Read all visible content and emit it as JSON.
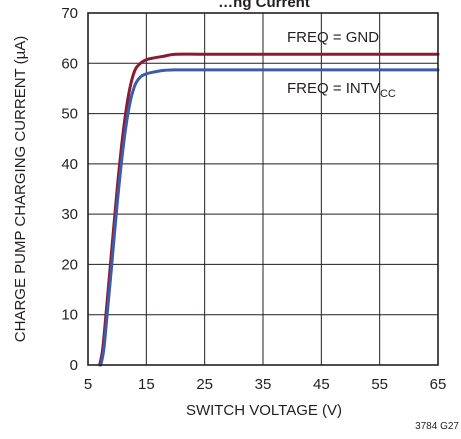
{
  "chart_data": {
    "type": "line",
    "title": "…ng Current",
    "xlabel": "SWITCH VOLTAGE (V)",
    "ylabel": "CHARGE PUMP CHARGING CURRENT (µA)",
    "xlim": [
      5,
      65
    ],
    "ylim": [
      0,
      70
    ],
    "x_ticks": [
      5,
      15,
      25,
      35,
      45,
      55,
      65
    ],
    "y_ticks": [
      0,
      10,
      20,
      30,
      40,
      50,
      60,
      70
    ],
    "grid": true,
    "series": [
      {
        "name": "FREQ = GND",
        "color": "#8b1a33",
        "x": [
          7.0,
          7.5,
          8.0,
          9.0,
          10.0,
          11.0,
          12.0,
          13.0,
          14.0,
          15.0,
          16.0,
          18.0,
          20.0,
          25.0,
          35.0,
          45.0,
          55.0,
          65.0
        ],
        "y": [
          0,
          3,
          9,
          22,
          35,
          46,
          54,
          58.5,
          60,
          60.7,
          61.0,
          61.4,
          61.8,
          61.8,
          61.8,
          61.8,
          61.8,
          61.8
        ]
      },
      {
        "name": "FREQ = INTVCC",
        "color": "#3c5ba9",
        "x": [
          7.2,
          7.7,
          8.2,
          9.0,
          10.0,
          11.0,
          12.0,
          13.0,
          14.0,
          15.0,
          16.0,
          18.0,
          20.0,
          25.0,
          35.0,
          45.0,
          55.0,
          65.0
        ],
        "y": [
          0,
          3,
          9,
          19,
          32,
          43,
          51,
          55.5,
          57.3,
          57.9,
          58.2,
          58.6,
          58.7,
          58.7,
          58.7,
          58.7,
          58.7,
          58.7
        ]
      }
    ],
    "annotations": [
      {
        "main": "FREQ = GND",
        "sub": ""
      },
      {
        "main": "FREQ = INTV",
        "sub": "CC"
      }
    ],
    "figure_id": "3784 G27"
  }
}
